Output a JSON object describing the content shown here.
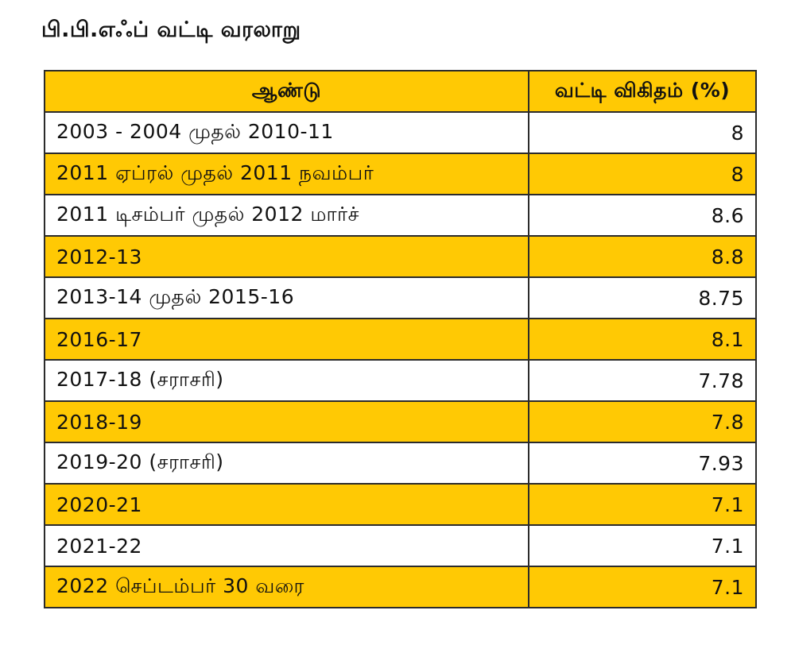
{
  "title": "பி.பி.எஃப் வட்டி வரலாறு",
  "table": {
    "headers": [
      "ஆண்டு",
      "வட்டி விகிதம் (%)"
    ],
    "rows": [
      {
        "period": "2003 - 2004 முதல் 2010-11",
        "rate": "8"
      },
      {
        "period": "2011 ஏப்ரல் முதல் 2011 நவம்பர்",
        "rate": "8"
      },
      {
        "period": "2011 டிசம்பர் முதல் 2012 மார்ச்",
        "rate": "8.6"
      },
      {
        "period": "2012-13",
        "rate": "8.8"
      },
      {
        "period": "2013-14 முதல் 2015-16",
        "rate": "8.75"
      },
      {
        "period": "2016-17",
        "rate": "8.1"
      },
      {
        "period": "2017-18 (சராசரி)",
        "rate": "7.78"
      },
      {
        "period": "2018-19",
        "rate": "7.8"
      },
      {
        "period": "2019-20 (சராசரி)",
        "rate": "7.93"
      },
      {
        "period": "2020-21",
        "rate": "7.1"
      },
      {
        "period": "2021-22",
        "rate": "7.1"
      },
      {
        "period": "2022 செப்டம்பர் 30 வரை",
        "rate": "7.1"
      }
    ]
  },
  "colors": {
    "highlight": "#ffc904",
    "border": "#2b2b2b",
    "background": "#ffffff"
  }
}
